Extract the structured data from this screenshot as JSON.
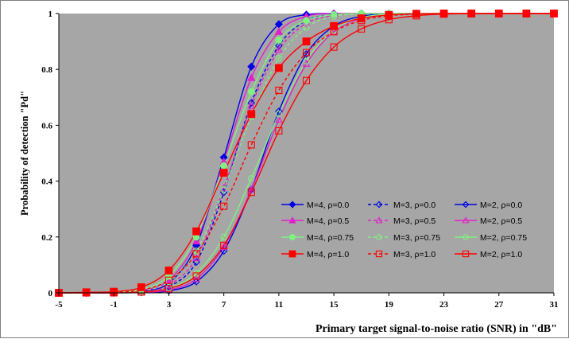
{
  "chart_data": {
    "type": "line",
    "title": "",
    "xlabel": "Primary target signal-to-noise ratio (SNR) in \"dB\"",
    "ylabel": "Probability of detection \"Pd\"",
    "xlim": [
      -5,
      31
    ],
    "ylim": [
      0,
      1
    ],
    "xticks": [
      "-5",
      "-1",
      "3",
      "7",
      "11",
      "15",
      "19",
      "23",
      "27",
      "31"
    ],
    "yticks": [
      "0",
      "0.2",
      "0.4",
      "0.6",
      "0.8",
      "1"
    ],
    "plot_bg": "#a6a6a6",
    "legend_position": "lower-right inside plot",
    "series": [
      {
        "name": "M=4, ρ=0.0",
        "color": "#0000e6",
        "dash": "solid",
        "marker": "diamond",
        "fill": "filled",
        "x": [
          -5,
          -3,
          -1,
          1,
          3,
          5,
          7,
          9,
          11,
          13,
          15,
          17,
          19,
          21,
          23,
          25,
          27,
          29,
          31
        ],
        "y": [
          0,
          0,
          0.001,
          0.006,
          0.035,
          0.17,
          0.485,
          0.81,
          0.962,
          0.996,
          1,
          1,
          1,
          1,
          1,
          1,
          1,
          1,
          1
        ]
      },
      {
        "name": "M=3, ρ=0.0",
        "color": "#0000e6",
        "dash": "dashed",
        "marker": "diamond",
        "fill": "open",
        "x": [
          -5,
          -3,
          -1,
          1,
          3,
          5,
          7,
          9,
          11,
          13,
          15,
          17,
          19,
          21,
          23,
          25,
          27,
          29,
          31
        ],
        "y": [
          0,
          0,
          0,
          0.003,
          0.022,
          0.11,
          0.36,
          0.68,
          0.885,
          0.975,
          0.996,
          1,
          1,
          1,
          1,
          1,
          1,
          1,
          1
        ]
      },
      {
        "name": "M=2, ρ=0.0",
        "color": "#0000e6",
        "dash": "solid",
        "marker": "diamond",
        "fill": "open",
        "x": [
          -5,
          -3,
          -1,
          1,
          3,
          5,
          7,
          9,
          11,
          13,
          15,
          17,
          19,
          21,
          23,
          25,
          27,
          29,
          31
        ],
        "y": [
          0,
          0,
          0,
          0.001,
          0.007,
          0.04,
          0.15,
          0.37,
          0.65,
          0.855,
          0.955,
          0.99,
          0.998,
          1,
          1,
          1,
          1,
          1,
          1
        ]
      },
      {
        "name": "M=4, ρ=0.5",
        "color": "#e020c8",
        "dash": "solid",
        "marker": "triangle",
        "fill": "filled",
        "x": [
          -5,
          -3,
          -1,
          1,
          3,
          5,
          7,
          9,
          11,
          13,
          15,
          17,
          19,
          21,
          23,
          25,
          27,
          29,
          31
        ],
        "y": [
          0,
          0,
          0.002,
          0.008,
          0.045,
          0.185,
          0.47,
          0.77,
          0.935,
          0.99,
          1,
          1,
          1,
          1,
          1,
          1,
          1,
          1,
          1
        ]
      },
      {
        "name": "M=3, ρ=0.5",
        "color": "#e020c8",
        "dash": "dashed",
        "marker": "triangle",
        "fill": "open",
        "x": [
          -5,
          -3,
          -1,
          1,
          3,
          5,
          7,
          9,
          11,
          13,
          15,
          17,
          19,
          21,
          23,
          25,
          27,
          29,
          31
        ],
        "y": [
          0,
          0,
          0.001,
          0.004,
          0.028,
          0.125,
          0.375,
          0.67,
          0.87,
          0.965,
          0.993,
          1,
          1,
          1,
          1,
          1,
          1,
          1,
          1
        ]
      },
      {
        "name": "M=2, ρ=0.5",
        "color": "#e020c8",
        "dash": "solid",
        "marker": "triangle",
        "fill": "open",
        "x": [
          -5,
          -3,
          -1,
          1,
          3,
          5,
          7,
          9,
          11,
          13,
          15,
          17,
          19,
          21,
          23,
          25,
          27,
          29,
          31
        ],
        "y": [
          0,
          0,
          0,
          0.002,
          0.01,
          0.05,
          0.165,
          0.37,
          0.62,
          0.82,
          0.935,
          0.982,
          0.996,
          1,
          1,
          1,
          1,
          1,
          1
        ]
      },
      {
        "name": "M=4, ρ=0.75",
        "color": "#80f080",
        "dash": "solid",
        "marker": "circle",
        "fill": "filled",
        "x": [
          -5,
          -3,
          -1,
          1,
          3,
          5,
          7,
          9,
          11,
          13,
          15,
          17,
          19,
          21,
          23,
          25,
          27,
          29,
          31
        ],
        "y": [
          0,
          0,
          0.002,
          0.012,
          0.06,
          0.2,
          0.455,
          0.72,
          0.905,
          0.975,
          0.996,
          1,
          1,
          1,
          1,
          1,
          1,
          1,
          1
        ]
      },
      {
        "name": "M=3, ρ=0.75",
        "color": "#80f080",
        "dash": "dashed",
        "marker": "circle",
        "fill": "open",
        "x": [
          -5,
          -3,
          -1,
          1,
          3,
          5,
          7,
          9,
          11,
          13,
          15,
          17,
          19,
          21,
          23,
          25,
          27,
          29,
          31
        ],
        "y": [
          0,
          0,
          0.001,
          0.007,
          0.04,
          0.15,
          0.37,
          0.63,
          0.84,
          0.95,
          0.99,
          0.998,
          1,
          1,
          1,
          1,
          1,
          1,
          1
        ]
      },
      {
        "name": "M=2, ρ=0.75",
        "color": "#80f080",
        "dash": "solid",
        "marker": "circle",
        "fill": "open",
        "x": [
          -5,
          -3,
          -1,
          1,
          3,
          5,
          7,
          9,
          11,
          13,
          15,
          17,
          19,
          21,
          23,
          25,
          27,
          29,
          31
        ],
        "y": [
          0,
          0,
          0.001,
          0.003,
          0.017,
          0.07,
          0.2,
          0.41,
          0.64,
          0.83,
          0.94,
          0.985,
          0.997,
          1,
          1,
          1,
          1,
          1,
          1
        ]
      },
      {
        "name": "M=4, ρ=1.0",
        "color": "#ff0000",
        "dash": "solid",
        "marker": "square",
        "fill": "filled",
        "x": [
          -5,
          -3,
          -1,
          1,
          3,
          5,
          7,
          9,
          11,
          13,
          15,
          17,
          19,
          21,
          23,
          25,
          27,
          29,
          31
        ],
        "y": [
          0,
          0.002,
          0.004,
          0.02,
          0.08,
          0.22,
          0.43,
          0.64,
          0.805,
          0.9,
          0.955,
          0.983,
          0.995,
          0.999,
          1,
          1,
          1,
          1,
          1
        ]
      },
      {
        "name": "M=3, ρ=1.0",
        "color": "#ff0000",
        "dash": "dashed",
        "marker": "square",
        "fill": "open",
        "x": [
          -5,
          -3,
          -1,
          1,
          3,
          5,
          7,
          9,
          11,
          13,
          15,
          17,
          19,
          21,
          23,
          25,
          27,
          29,
          31
        ],
        "y": [
          0,
          0,
          0.002,
          0.01,
          0.045,
          0.14,
          0.31,
          0.53,
          0.725,
          0.86,
          0.935,
          0.975,
          0.992,
          0.998,
          1,
          1,
          1,
          1,
          1
        ]
      },
      {
        "name": "M=2, ρ=1.0",
        "color": "#ff0000",
        "dash": "solid",
        "marker": "square",
        "fill": "open",
        "x": [
          -5,
          -3,
          -1,
          1,
          3,
          5,
          7,
          9,
          11,
          13,
          15,
          17,
          19,
          21,
          23,
          25,
          27,
          29,
          31
        ],
        "y": [
          0,
          0,
          0,
          0.003,
          0.015,
          0.06,
          0.17,
          0.36,
          0.58,
          0.76,
          0.88,
          0.945,
          0.978,
          0.992,
          0.998,
          1,
          1,
          1,
          1
        ]
      }
    ]
  }
}
